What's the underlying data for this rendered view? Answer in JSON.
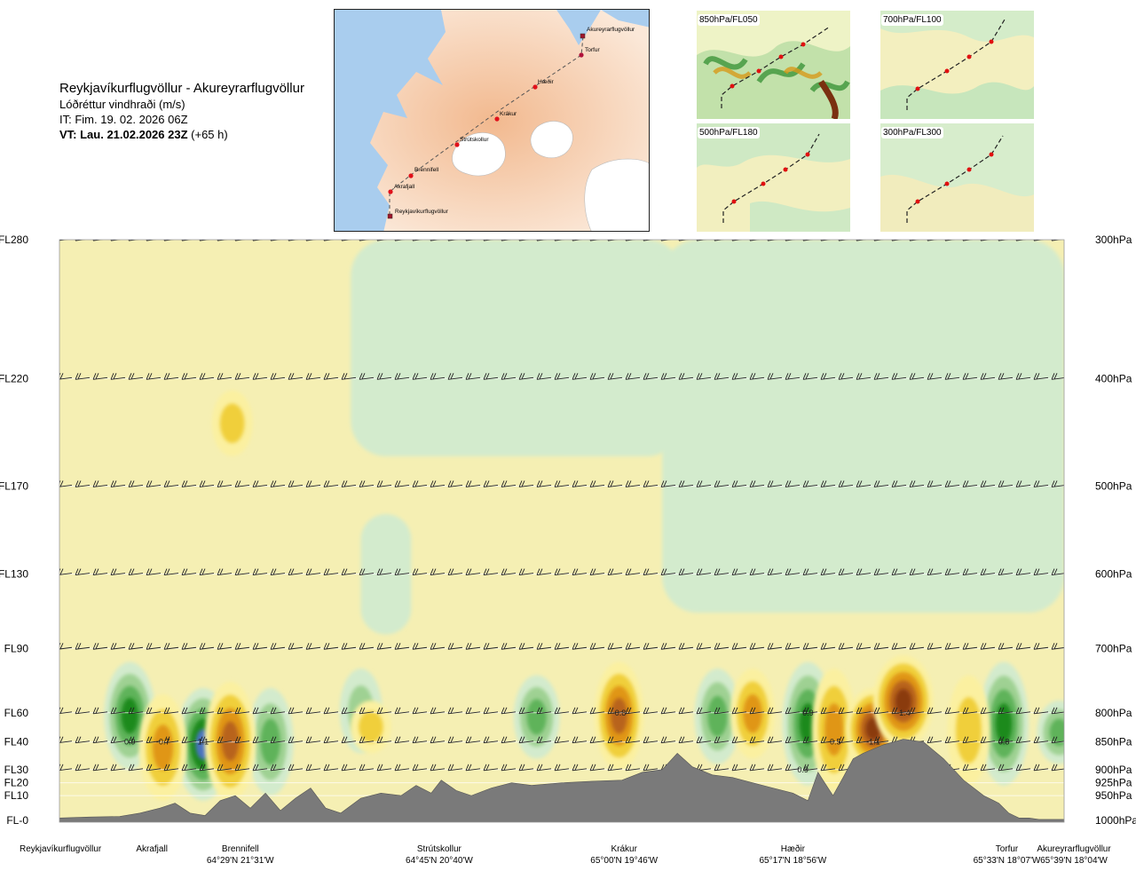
{
  "header": {
    "route": "Reykjavíkurflugvöllur - Akureyrarflugvöllur",
    "variable": "Lóðréttur vindhraði (m/s)",
    "initial_time": "IT: Fim. 19. 02. 2026 06Z",
    "valid_time": "VT: Lau. 21.02.2026 23Z",
    "lead": "(+65 h)"
  },
  "overview_map": {
    "places": [
      "Akureyrarflugvöllur",
      "Torfur",
      "Hæðir",
      "Krákur",
      "Strútskollur",
      "Brennifell",
      "Akrafjall",
      "Reykjavíkurflugvöllur"
    ]
  },
  "level_maps": [
    {
      "label": "850hPa/FL050"
    },
    {
      "label": "700hPa/FL100"
    },
    {
      "label": "500hPa/FL180"
    },
    {
      "label": "300hPa/FL300"
    }
  ],
  "colors": {
    "sink_weak": "#f5efb3",
    "sink_mid": "#f0cf3a",
    "sink_strong": "#e09612",
    "sink_peak": "#8a3a0f",
    "rise_weak": "#d3ebcd",
    "rise_mid": "#9fd193",
    "rise_strong": "#1f8a1f",
    "rise_peak": "#4a72c0",
    "terrain": "#7a7a7a"
  },
  "chart_data": {
    "type": "heatmap",
    "title": "Lóðréttur vindhraði (m/s)",
    "left_axis_labels": [
      {
        "label": "FL280",
        "pressure_hpa": 300
      },
      {
        "label": "FL220",
        "pressure_hpa": 400
      },
      {
        "label": "FL170",
        "pressure_hpa": 500
      },
      {
        "label": "FL130",
        "pressure_hpa": 600
      },
      {
        "label": "FL90",
        "pressure_hpa": 700
      },
      {
        "label": "FL60",
        "pressure_hpa": 800
      },
      {
        "label": "FL40",
        "pressure_hpa": 850
      },
      {
        "label": "FL30",
        "pressure_hpa": 900
      },
      {
        "label": "FL20",
        "pressure_hpa": 925
      },
      {
        "label": "FL10",
        "pressure_hpa": 950
      },
      {
        "label": "FL-0",
        "pressure_hpa": 1000
      }
    ],
    "right_axis_labels": [
      "300hPa",
      "400hPa",
      "500hPa",
      "600hPa",
      "700hPa",
      "800hPa",
      "850hPa",
      "900hPa",
      "925hPa",
      "950hPa",
      "1000hPa"
    ],
    "x_range": [
      0,
      1
    ],
    "y_pressure_range_hpa": [
      300,
      1000
    ],
    "waypoints": [
      {
        "name": "Reykjavíkurflugvöllur",
        "coord": "",
        "x": 0.0
      },
      {
        "name": "Akrafjall",
        "coord": "",
        "x": 0.092
      },
      {
        "name": "Brennifell",
        "coord": "64°29'N 21°31'W",
        "x": 0.18
      },
      {
        "name": "Strútskollur",
        "coord": "64°45'N 20°40'W",
        "x": 0.378
      },
      {
        "name": "Krákur",
        "coord": "65°00'N 19°46'W",
        "x": 0.562
      },
      {
        "name": "Hæðir",
        "coord": "65°17'N 18°56'W",
        "x": 0.73
      },
      {
        "name": "Torfur",
        "coord": "65°33'N 18°07'W",
        "x": 0.943
      },
      {
        "name": "Akureyrarflugvöllur",
        "coord": "65°39'N 18°04'W",
        "x": 1.0
      }
    ],
    "cell_labels": [
      {
        "value": "0.9",
        "x": 0.07,
        "p": 850
      },
      {
        "value": "-0.7",
        "x": 0.103,
        "p": 850
      },
      {
        "value": "1.1",
        "x": 0.143,
        "p": 850
      },
      {
        "value": "-0.8",
        "x": 0.557,
        "p": 800
      },
      {
        "value": "0.9",
        "x": 0.745,
        "p": 800
      },
      {
        "value": "0.9",
        "x": 0.74,
        "p": 900
      },
      {
        "value": "-0.5",
        "x": 0.771,
        "p": 850
      },
      {
        "value": "-1.1",
        "x": 0.81,
        "p": 850
      },
      {
        "value": "-1.4",
        "x": 0.84,
        "p": 800
      },
      {
        "value": "0.8",
        "x": 0.94,
        "p": 850
      }
    ],
    "upward_cores": [
      {
        "x": 0.07,
        "p_top": 720,
        "p_bottom": 900,
        "peak": 0.9
      },
      {
        "x": 0.143,
        "p_top": 760,
        "p_bottom": 960,
        "peak": 1.1
      },
      {
        "x": 0.21,
        "p_top": 760,
        "p_bottom": 950,
        "peak": 0.6
      },
      {
        "x": 0.3,
        "p_top": 730,
        "p_bottom": 870,
        "peak": 0.4
      },
      {
        "x": 0.475,
        "p_top": 740,
        "p_bottom": 880,
        "peak": 0.6
      },
      {
        "x": 0.655,
        "p_top": 730,
        "p_bottom": 890,
        "peak": 0.6
      },
      {
        "x": 0.745,
        "p_top": 720,
        "p_bottom": 930,
        "peak": 0.9
      },
      {
        "x": 0.94,
        "p_top": 720,
        "p_bottom": 930,
        "peak": 0.8
      },
      {
        "x": 0.995,
        "p_top": 780,
        "p_bottom": 890,
        "peak": 0.5
      }
    ],
    "downward_cores": [
      {
        "x": 0.103,
        "p_top": 770,
        "p_bottom": 960,
        "peak": -0.7
      },
      {
        "x": 0.17,
        "p_top": 750,
        "p_bottom": 960,
        "peak": -0.9
      },
      {
        "x": 0.557,
        "p_top": 720,
        "p_bottom": 900,
        "peak": -0.8
      },
      {
        "x": 0.69,
        "p_top": 730,
        "p_bottom": 880,
        "peak": -0.5
      },
      {
        "x": 0.771,
        "p_top": 730,
        "p_bottom": 940,
        "peak": -0.5
      },
      {
        "x": 0.81,
        "p_top": 760,
        "p_bottom": 900,
        "peak": -1.1
      },
      {
        "x": 0.84,
        "p_top": 710,
        "p_bottom": 860,
        "peak": -1.4
      },
      {
        "x": 0.905,
        "p_top": 740,
        "p_bottom": 930,
        "peak": -0.4
      },
      {
        "x": 0.172,
        "p_top": 410,
        "p_bottom": 470,
        "peak": -0.3
      },
      {
        "x": 0.31,
        "p_top": 780,
        "p_bottom": 870,
        "peak": -0.3
      }
    ],
    "upper_rising_regions": [
      {
        "x_from": 0.29,
        "x_to": 0.62,
        "p_from": 300,
        "p_to": 470
      },
      {
        "x_from": 0.6,
        "x_to": 1.0,
        "p_from": 300,
        "p_to": 650
      },
      {
        "x_from": 0.3,
        "x_to": 0.35,
        "p_from": 530,
        "p_to": 680
      }
    ],
    "terrain": {
      "x": [
        0.0,
        0.03,
        0.06,
        0.08,
        0.1,
        0.115,
        0.13,
        0.145,
        0.16,
        0.175,
        0.19,
        0.205,
        0.22,
        0.235,
        0.25,
        0.265,
        0.28,
        0.3,
        0.32,
        0.34,
        0.355,
        0.37,
        0.38,
        0.395,
        0.41,
        0.43,
        0.45,
        0.47,
        0.5,
        0.53,
        0.56,
        0.58,
        0.6,
        0.615,
        0.63,
        0.65,
        0.67,
        0.69,
        0.71,
        0.73,
        0.745,
        0.755,
        0.76,
        0.77,
        0.78,
        0.79,
        0.8,
        0.82,
        0.84,
        0.86,
        0.88,
        0.9,
        0.92,
        0.93,
        0.935,
        0.945,
        0.955,
        0.965,
        0.975,
        0.985,
        1.0
      ],
      "p": [
        995,
        993,
        992,
        985,
        975,
        965,
        985,
        990,
        960,
        950,
        975,
        945,
        980,
        955,
        935,
        975,
        985,
        955,
        945,
        950,
        930,
        945,
        920,
        940,
        950,
        935,
        925,
        930,
        925,
        922,
        920,
        905,
        900,
        870,
        895,
        910,
        915,
        925,
        935,
        945,
        960,
        905,
        920,
        950,
        915,
        880,
        870,
        855,
        845,
        850,
        880,
        920,
        950,
        960,
        965,
        985,
        995,
        995,
        998,
        998,
        998
      ]
    }
  }
}
